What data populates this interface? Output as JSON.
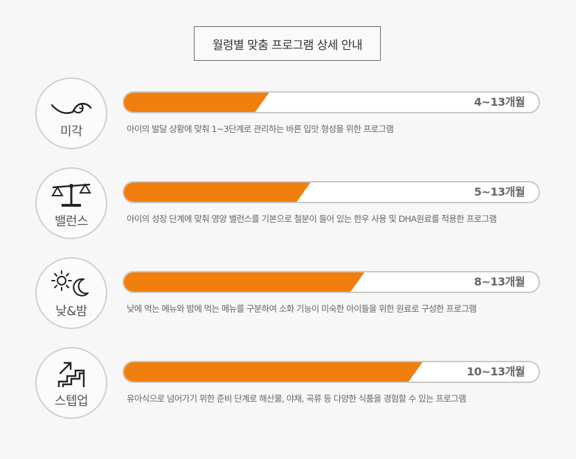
{
  "header": {
    "title": "월령별 맞춤 프로그램 상세 안내"
  },
  "stages": [
    {
      "label": "미각",
      "icon": "tongue-icon",
      "age": "4~13개월",
      "progress_pct": 35,
      "description": "아이의 발달 상황에 맞춰 1~3단계로 관리하는 바른 입맛 형성을 위한 프로그램"
    },
    {
      "label": "밸런스",
      "icon": "balance-scale-icon",
      "age": "5~13개월",
      "progress_pct": 45,
      "description": "아이의 성장 단계에 맞춰 영양 밸런스를 기본으로 철분이 들어 있는 한우 사용 및 DHA원료를 적용한 프로그램"
    },
    {
      "label": "낮&밤",
      "icon": "sun-moon-icon",
      "age": "8~13개월",
      "progress_pct": 58,
      "description": "낮에 먹는 메뉴와 밤에 먹는 메뉴를 구분하여 소화 기능이 미숙한 아이들을 위한 원료로 구성한 프로그램"
    },
    {
      "label": "스텝업",
      "icon": "step-up-stairs-icon",
      "age": "10~13개월",
      "progress_pct": 72,
      "description": "유아식으로 넘어가기 위한 준비 단계로 해산물, 야채, 곡류 등 다양한 식품을 경험할 수 있는 프로그램"
    }
  ],
  "colors": {
    "accent": "#f07f0d",
    "bar_border": "#c8c8c8",
    "circle_border": "#cfcfcf",
    "background": "#f7f7f7"
  }
}
